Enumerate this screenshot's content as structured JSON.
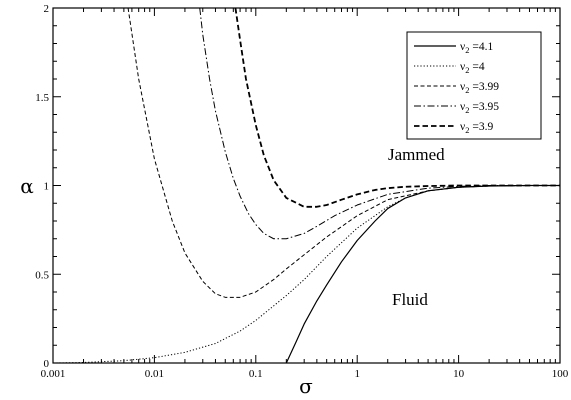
{
  "chart_data": {
    "type": "line",
    "xscale": "log",
    "xlim": [
      0.001,
      100
    ],
    "ylim": [
      0,
      2
    ],
    "xlabel": "σ",
    "ylabel": "α",
    "xticks": [
      {
        "v": 0.001,
        "label": "0.001"
      },
      {
        "v": 0.01,
        "label": "0.01"
      },
      {
        "v": 0.1,
        "label": "0.1"
      },
      {
        "v": 1,
        "label": "1"
      },
      {
        "v": 10,
        "label": "10"
      },
      {
        "v": 100,
        "label": "100"
      }
    ],
    "yticks": [
      {
        "v": 0,
        "label": "0"
      },
      {
        "v": 0.5,
        "label": "0.5"
      },
      {
        "v": 1,
        "label": "1"
      },
      {
        "v": 1.5,
        "label": "1.5"
      },
      {
        "v": 2,
        "label": "2"
      }
    ],
    "grid": false,
    "legend_position": "top-right",
    "annotations": [
      {
        "text": "Jammed",
        "x": 3.0,
        "y": 1.27
      },
      {
        "text": "Fluid",
        "x": 3.0,
        "y": 0.35
      }
    ],
    "series": [
      {
        "name_prefix": "ν",
        "name_sub": "2",
        "name_value": "=4.1",
        "dash": "",
        "width": 1.2,
        "x": [
          0.2,
          0.25,
          0.3,
          0.4,
          0.5,
          0.7,
          1.0,
          1.5,
          2.0,
          3.0,
          5.0,
          10,
          20,
          50,
          100
        ],
        "y": [
          0.0,
          0.12,
          0.22,
          0.35,
          0.44,
          0.57,
          0.69,
          0.8,
          0.87,
          0.93,
          0.97,
          0.99,
          0.997,
          1.0,
          1.0
        ]
      },
      {
        "name_prefix": "ν",
        "name_sub": "2",
        "name_value": "=4",
        "dash": "1.2,2",
        "width": 1.0,
        "x": [
          0.001,
          0.002,
          0.005,
          0.01,
          0.02,
          0.04,
          0.07,
          0.1,
          0.2,
          0.3,
          0.5,
          1.0,
          2.0,
          3.0,
          5.0,
          10,
          20,
          50,
          100
        ],
        "y": [
          0.0,
          0.003,
          0.013,
          0.03,
          0.06,
          0.11,
          0.18,
          0.24,
          0.38,
          0.47,
          0.6,
          0.76,
          0.88,
          0.93,
          0.97,
          0.99,
          0.997,
          1.0,
          1.0
        ]
      },
      {
        "name_prefix": "ν",
        "name_sub": "2",
        "name_value": "=3.99",
        "dash": "4,2.5",
        "width": 1.0,
        "x": [
          0.0055,
          0.007,
          0.01,
          0.015,
          0.02,
          0.03,
          0.04,
          0.05,
          0.07,
          0.1,
          0.15,
          0.2,
          0.3,
          0.5,
          1.0,
          2.0,
          5.0,
          10,
          20,
          50,
          100
        ],
        "y": [
          2.0,
          1.6,
          1.15,
          0.8,
          0.62,
          0.46,
          0.39,
          0.37,
          0.37,
          0.4,
          0.47,
          0.53,
          0.61,
          0.71,
          0.83,
          0.92,
          0.97,
          0.99,
          0.997,
          1.0,
          1.0
        ]
      },
      {
        "name_prefix": "ν",
        "name_sub": "2",
        "name_value": "=3.95",
        "dash": "7,2.5,1.5,2.5",
        "width": 1.0,
        "x": [
          0.028,
          0.03,
          0.035,
          0.04,
          0.05,
          0.06,
          0.07,
          0.085,
          0.1,
          0.12,
          0.15,
          0.2,
          0.3,
          0.4,
          0.6,
          1.0,
          2.0,
          5.0,
          10,
          20,
          50,
          100
        ],
        "y": [
          2.0,
          1.85,
          1.6,
          1.42,
          1.19,
          1.04,
          0.94,
          0.84,
          0.78,
          0.73,
          0.7,
          0.7,
          0.73,
          0.77,
          0.83,
          0.89,
          0.95,
          0.985,
          0.995,
          1.0,
          1.0,
          1.0
        ]
      },
      {
        "name_prefix": "ν",
        "name_sub": "2",
        "name_value": "=3.9",
        "dash": "5.5,3",
        "width": 1.8,
        "x": [
          0.063,
          0.07,
          0.08,
          0.1,
          0.12,
          0.15,
          0.2,
          0.3,
          0.4,
          0.5,
          0.7,
          1.0,
          1.5,
          2.0,
          3.0,
          5.0,
          10,
          20,
          50,
          100
        ],
        "y": [
          2.0,
          1.82,
          1.6,
          1.34,
          1.17,
          1.03,
          0.93,
          0.88,
          0.88,
          0.89,
          0.92,
          0.95,
          0.975,
          0.985,
          0.993,
          0.997,
          1.0,
          1.0,
          1.0,
          1.0
        ]
      }
    ]
  }
}
